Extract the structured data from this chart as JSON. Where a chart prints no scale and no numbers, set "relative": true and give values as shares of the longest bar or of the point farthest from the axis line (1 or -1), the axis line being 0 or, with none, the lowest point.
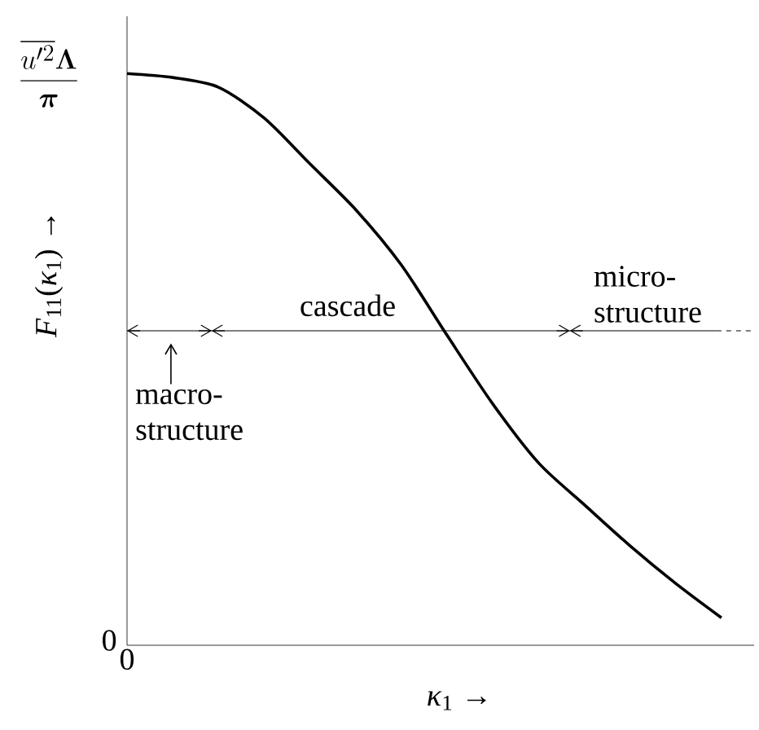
{
  "chart_data": {
    "type": "line",
    "relative": true,
    "xlabel": "*κ*$_{1}$  →",
    "ylabel": "*F*$_{11}$(*κ*$_{1}$)  →",
    "categories": [
      null,
      null,
      null,
      null,
      null,
      null,
      null,
      null,
      null,
      null,
      null,
      null,
      null,
      null
    ],
    "series": [
      {
        "color": "#000000",
        "values": [
          1.0,
          0.993,
          0.976,
          0.922,
          0.842,
          0.762,
          0.665,
          0.542,
          0.422,
          0.319,
          0.246,
          0.174,
          0.108,
          0.048
        ]
      }
    ],
    "ref_lines": [
      {
        "axis": "y",
        "value": 0.55,
        "color": "#000000"
      }
    ],
    "annotations": [
      "\\frac{\\overline{u'^2}\\bm{\\Lambda}}{\\bm{\\pi}}",
      "0",
      "0",
      "cascade",
      "micro-structure",
      "macro-structure"
    ],
    "marker": "none",
    "line_style": "solid",
    "legend": false
  }
}
